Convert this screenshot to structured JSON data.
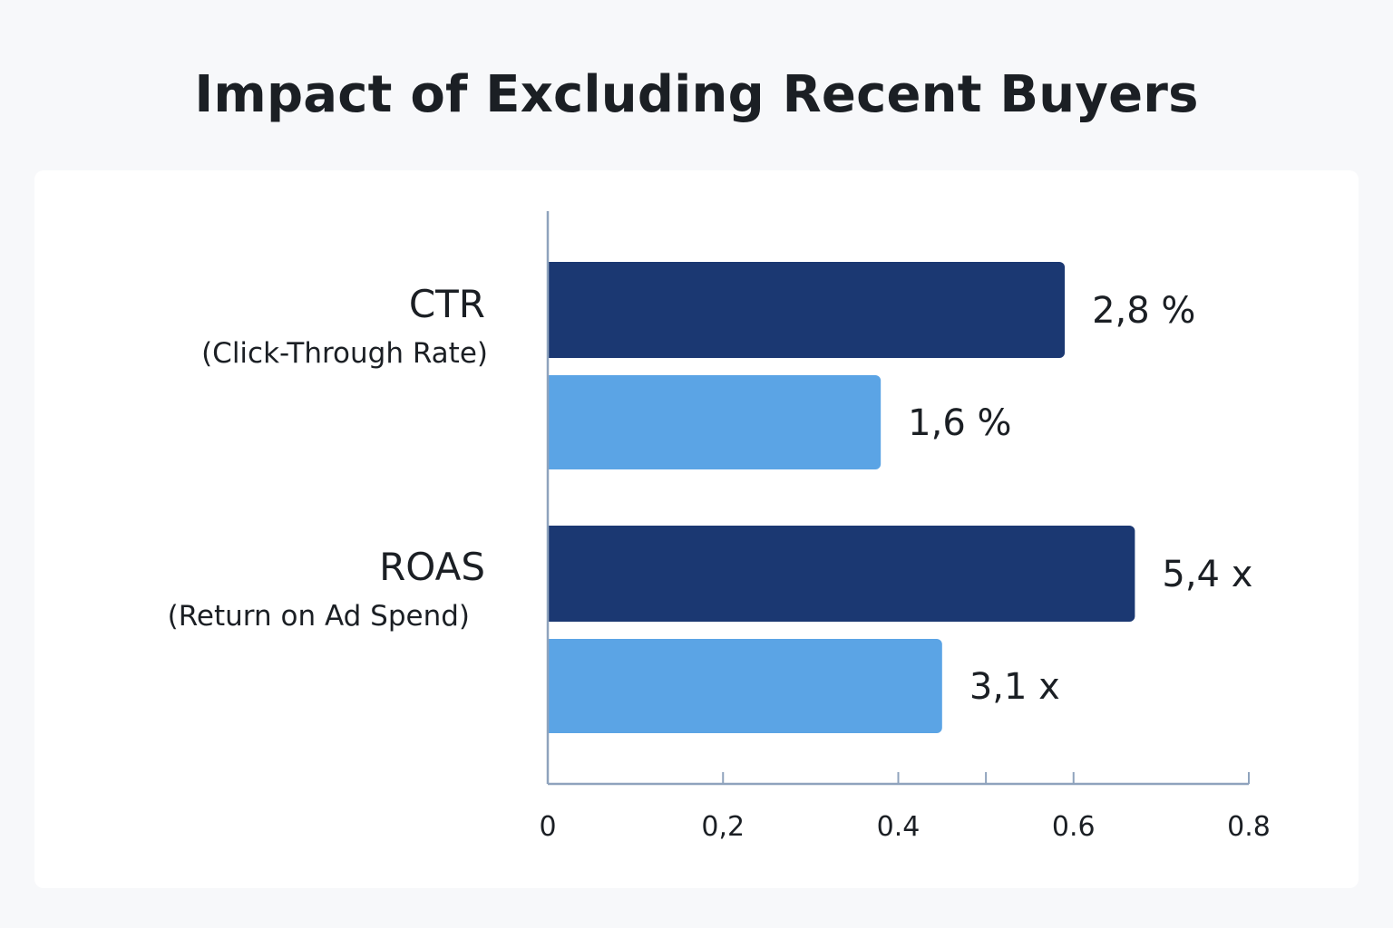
{
  "title": "Impact of Excluding Recent Buyers",
  "colors": {
    "background": "#f7f8fa",
    "card": "#ffffff",
    "series_dark": "#1b3872",
    "series_light": "#5ba4e5",
    "axis": "#8fa3bd",
    "text": "#1b1f24"
  },
  "chart_data": {
    "type": "bar",
    "orientation": "horizontal",
    "title": "Impact of Excluding Recent Buyers",
    "categories": [
      {
        "name": "CTR",
        "subtitle": "(Click-Through Rate)"
      },
      {
        "name": "ROAS",
        "subtitle": "(Return on Ad Spend)"
      }
    ],
    "series": [
      {
        "name": "dark",
        "color": "#1b3872",
        "values": [
          0.59,
          0.67
        ],
        "labels": [
          "2,8 %",
          "5,4 x"
        ]
      },
      {
        "name": "light",
        "color": "#5ba4e5",
        "values": [
          0.38,
          0.45
        ],
        "labels": [
          "1,6 %",
          "3,1 x"
        ]
      }
    ],
    "xlim": [
      0,
      0.8
    ],
    "xticks": [
      {
        "value": 0,
        "label": "0"
      },
      {
        "value": 0.2,
        "label": "0,2"
      },
      {
        "value": 0.4,
        "label": "0.4"
      },
      {
        "value": 0.6,
        "label": "0.6"
      },
      {
        "value": 0.8,
        "label": "0.8"
      }
    ],
    "minor_ticks": [
      0.5
    ],
    "xlabel": "",
    "ylabel": "",
    "grid": false,
    "legend": "none"
  }
}
